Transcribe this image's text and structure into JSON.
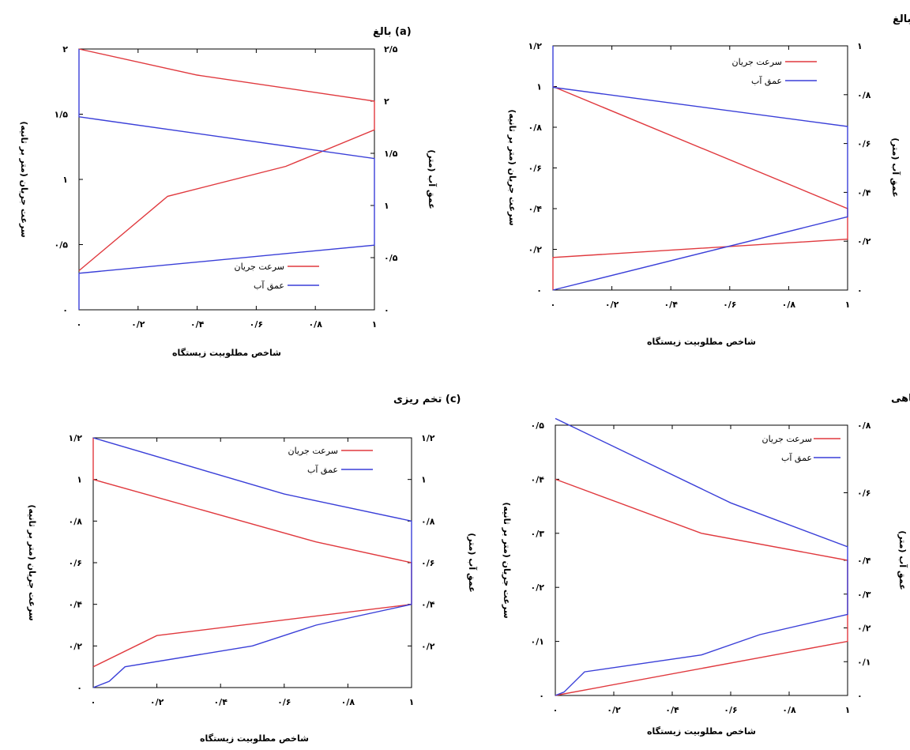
{
  "chart_data": [
    {
      "type": "line",
      "title": "(a) بالغ",
      "xlabel": "شاخص مطلوبیت زیستگاه",
      "ylabel": "سرعت جریان (متر بر ثانیه)",
      "y2label": "عمق آب (متر)",
      "xlim": [
        0,
        1
      ],
      "ylim": [
        0,
        2
      ],
      "y2lim": [
        0,
        2.5
      ],
      "xticks": [
        0,
        0.2,
        0.4,
        0.6,
        0.8,
        1
      ],
      "xtick_labels": [
        "۰",
        "۰/۲",
        "۰/۴",
        "۰/۶",
        "۰/۸",
        "۱"
      ],
      "yticks": [
        0,
        0.5,
        1,
        1.5,
        2
      ],
      "ytick_labels": [
        "۰",
        "۰/۵",
        "۱",
        "۱/۵",
        "۲"
      ],
      "y2ticks": [
        0,
        0.5,
        1,
        1.5,
        2,
        2.5
      ],
      "y2tick_labels": [
        "۰",
        "۰/۵",
        "۱",
        "۱/۵",
        "۲",
        "۲/۵"
      ],
      "legend": "bottom-right",
      "series": [
        {
          "name": "سرعت جریان",
          "color": "#e0393e",
          "axis": "left",
          "x": [
            0,
            0.3,
            0.7,
            1,
            1,
            0.4,
            0
          ],
          "y": [
            0.3,
            0.87,
            1.1,
            1.38,
            1.6,
            1.8,
            2
          ]
        },
        {
          "name": "عمق آب",
          "color": "#3a3fd8",
          "axis": "right",
          "x": [
            0,
            0,
            1,
            1,
            0,
            0
          ],
          "y": [
            0,
            0.35,
            0.62,
            1.45,
            1.85,
            2.5
          ]
        }
      ]
    },
    {
      "type": "line",
      "title": "(b) نابالغ",
      "xlabel": "شاخص مطلوبیت زیستگاه",
      "ylabel": "سرعت جریان (متر بر ثانیه)",
      "y2label": "عمق آب (متر)",
      "xlim": [
        0,
        1
      ],
      "ylim": [
        0,
        1.2
      ],
      "y2lim": [
        0,
        1
      ],
      "xticks": [
        0,
        0.2,
        0.4,
        0.6,
        0.8,
        1
      ],
      "xtick_labels": [
        "۰",
        "۰/۲",
        "۰/۴",
        "۰/۶",
        "۰/۸",
        "۱"
      ],
      "yticks": [
        0,
        0.2,
        0.4,
        0.6,
        0.8,
        1,
        1.2
      ],
      "ytick_labels": [
        "۰",
        "۰/۲",
        "۰/۴",
        "۰/۶",
        "۰/۸",
        "۱",
        "۱/۲"
      ],
      "y2ticks": [
        0,
        0.2,
        0.4,
        0.6,
        0.8,
        1
      ],
      "y2tick_labels": [
        "۰",
        "۰/۲",
        "۰/۴",
        "۰/۶",
        "۰/۸",
        "۱"
      ],
      "legend": "top-right",
      "series": [
        {
          "name": "سرعت جریان",
          "color": "#e0393e",
          "axis": "left",
          "x": [
            0,
            0,
            1,
            1,
            0
          ],
          "y": [
            0,
            0.16,
            0.25,
            0.4,
            1.0
          ]
        },
        {
          "name": "عمق آب",
          "color": "#3a3fd8",
          "axis": "right",
          "x": [
            0,
            1,
            1,
            0,
            0
          ],
          "y": [
            0,
            0.3,
            0.67,
            0.83,
            1.0
          ]
        }
      ]
    },
    {
      "type": "line",
      "title": "(c) تخم ریزی",
      "xlabel": "شاخص مطلوبیت زیستگاه",
      "ylabel": "سرعت جریان (متر بر ثانیه)",
      "y2label": "عمق آب (متر)",
      "xlim": [
        0,
        1
      ],
      "ylim": [
        0,
        1.2
      ],
      "y2lim": [
        0,
        1.2
      ],
      "xticks": [
        0,
        0.2,
        0.4,
        0.6,
        0.8,
        1
      ],
      "xtick_labels": [
        "۰",
        "۰/۲",
        "۰/۴",
        "۰/۶",
        "۰/۸",
        "۱"
      ],
      "yticks": [
        0,
        0.2,
        0.4,
        0.6,
        0.8,
        1,
        1.2
      ],
      "ytick_labels": [
        "۰",
        "۰/۲",
        "۰/۴",
        "۰/۶",
        "۰/۸",
        "۱",
        "۱/۲"
      ],
      "y2ticks": [
        0.2,
        0.4,
        0.6,
        0.8,
        1,
        1.2
      ],
      "y2tick_labels": [
        "۰/۲",
        "۰/۴",
        "۰/۶",
        "۰/۸",
        "۱",
        "۱/۲"
      ],
      "legend": "top-right",
      "series": [
        {
          "name": "سرعت جریان",
          "color": "#e0393e",
          "axis": "left",
          "x": [
            0,
            0.2,
            1,
            1,
            0.7,
            0,
            0
          ],
          "y": [
            0.1,
            0.25,
            0.4,
            0.6,
            0.7,
            1.0,
            1.2
          ]
        },
        {
          "name": "عمق آب",
          "color": "#3a3fd8",
          "axis": "right",
          "x": [
            0,
            0.05,
            0.1,
            0.5,
            0.7,
            1,
            1,
            0.6,
            0
          ],
          "y": [
            0,
            0.03,
            0.1,
            0.2,
            0.3,
            0.4,
            0.8,
            0.93,
            1.2
          ]
        }
      ]
    },
    {
      "type": "line",
      "title": "(d) بچه ماهی",
      "xlabel": "شاخص مطلوبیت زیستگاه",
      "ylabel": "سرعت جریان (متر بر ثانیه)",
      "y2label": "عمق آب (متر)",
      "xlim": [
        0,
        1
      ],
      "ylim": [
        0,
        0.5
      ],
      "y2lim": [
        0,
        0.8
      ],
      "xticks": [
        0,
        0.2,
        0.4,
        0.6,
        0.8,
        1
      ],
      "xtick_labels": [
        "۰",
        "۰/۲",
        "۰/۴",
        "۰/۶",
        "۰/۸",
        "۱"
      ],
      "yticks": [
        0,
        0.1,
        0.2,
        0.3,
        0.4,
        0.5
      ],
      "ytick_labels": [
        "۰",
        "۰/۱",
        "۰/۲",
        "۰/۳",
        "۰/۴",
        "۰/۵"
      ],
      "y2ticks": [
        0,
        0.1,
        0.2,
        0.3,
        0.4,
        0.6,
        0.8
      ],
      "y2tick_labels": [
        "۰",
        "۰/۱",
        "۰/۲",
        "۰/۳",
        "۰/۴",
        "۰/۶",
        "۰/۸"
      ],
      "legend": "top-left",
      "series": [
        {
          "name": "سرعت جریان",
          "color": "#e0393e",
          "axis": "left",
          "x": [
            0,
            1,
            1,
            0.5,
            0
          ],
          "y": [
            0,
            0.1,
            0.25,
            0.3,
            0.4
          ]
        },
        {
          "name": "عمق آب",
          "color": "#3a3fd8",
          "axis": "right",
          "x": [
            0,
            0.03,
            0.1,
            0.5,
            0.7,
            1,
            1,
            0.6,
            0
          ],
          "y": [
            0,
            0.01,
            0.07,
            0.12,
            0.18,
            0.24,
            0.44,
            0.57,
            0.82
          ]
        }
      ]
    }
  ]
}
